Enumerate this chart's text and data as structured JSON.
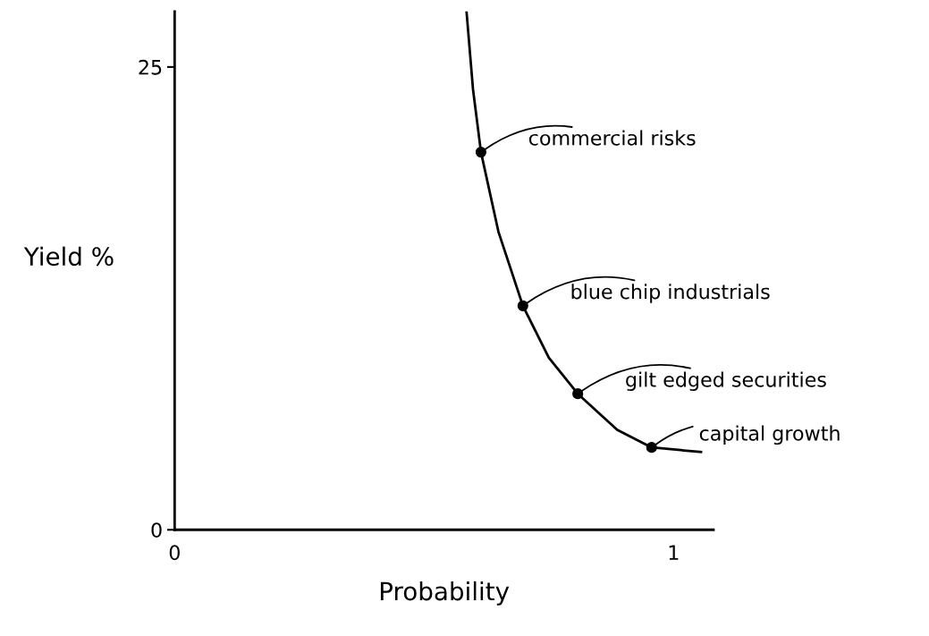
{
  "chart_data": {
    "type": "line",
    "xlabel": "Probability",
    "ylabel": "Yield %",
    "xlim": [
      0,
      1.08
    ],
    "ylim": [
      0,
      28
    ],
    "xticks": [
      0,
      1
    ],
    "yticks": [
      0,
      25
    ],
    "grid": false,
    "legend": false,
    "series": [
      {
        "color": "#000000",
        "marker": "none",
        "x": [
          0.585,
          0.598,
          0.614,
          0.649,
          0.698,
          0.75,
          0.808,
          0.887,
          0.956,
          1.055
        ],
        "values": [
          28.0,
          23.8,
          20.4,
          16.1,
          12.1,
          9.3,
          7.35,
          5.4,
          4.45,
          4.2
        ]
      },
      {
        "type": "scatter",
        "color": "#000000",
        "marker": "circle",
        "x": [
          0.614,
          0.698,
          0.808,
          0.956
        ],
        "values": [
          20.4,
          12.1,
          7.35,
          4.45
        ]
      }
    ],
    "annotations": [
      {
        "text": "commercial risks",
        "x": 0.614,
        "y": 20.4
      },
      {
        "text": "blue chip industrials",
        "x": 0.698,
        "y": 12.1
      },
      {
        "text": "gilt edged securities",
        "x": 0.808,
        "y": 7.35
      },
      {
        "text": "capital growth",
        "x": 0.956,
        "y": 4.45
      }
    ]
  }
}
